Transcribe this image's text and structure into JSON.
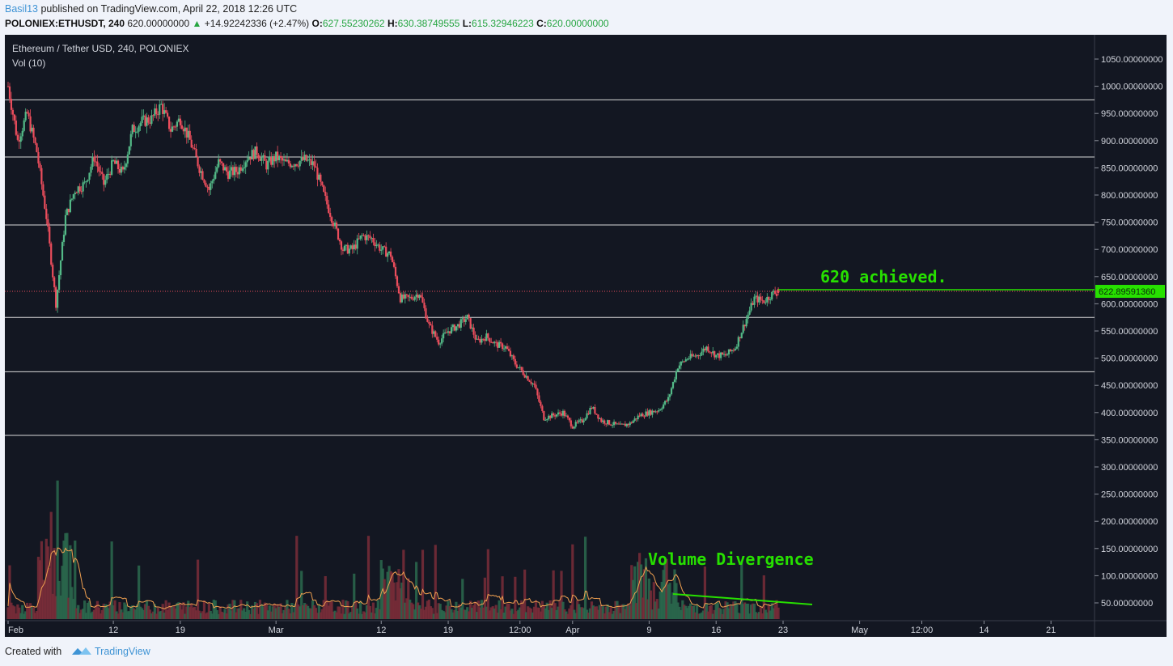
{
  "header": {
    "user": "Basil13",
    "published": " published on TradingView.com, April 22, 2018 12:26 UTC",
    "symbol": "POLONIEX:ETHUSDT, 240",
    "last": "620.00000000",
    "change": "+14.92242336 (+2.47%)",
    "o_label": "O:",
    "o_value": "627.55230262",
    "h_label": "H:",
    "h_value": "630.38749555",
    "l_label": "L:",
    "l_value": "615.32946223",
    "c_label": "C:",
    "c_value": "620.00000000"
  },
  "legend": {
    "title": "Ethereum / Tether USD, 240, POLONIEX",
    "volume": "Vol (10)"
  },
  "annotations": {
    "price": "620 achieved.",
    "volume": "Volume Divergence"
  },
  "footer": {
    "created": "Created with",
    "brand": "TradingView"
  },
  "chart_data": {
    "type": "candlestick",
    "interval": "240",
    "y_ticks": [
      "1050.00000000",
      "1000.00000000",
      "950.00000000",
      "900.00000000",
      "850.00000000",
      "800.00000000",
      "750.00000000",
      "700.00000000",
      "650.00000000",
      "600.00000000",
      "550.00000000",
      "500.00000000",
      "450.00000000",
      "400.00000000",
      "350.00000000",
      "300.00000000",
      "250.00000000",
      "200.00000000",
      "150.00000000",
      "100.00000000",
      "50.00000000"
    ],
    "x_ticks": [
      "Feb",
      "12",
      "19",
      "Mar",
      "12",
      "19",
      "12:00",
      "Apr",
      "9",
      "16",
      "23",
      "May",
      "12:00",
      "14",
      "21"
    ],
    "last_price_label": "622.89591360",
    "horizontal_levels": [
      975,
      870,
      745,
      575,
      475,
      358
    ],
    "price_path": [
      {
        "date": "2018-02-01",
        "close": 1000
      },
      {
        "date": "2018-02-02",
        "close": 900
      },
      {
        "date": "2018-02-03",
        "close": 950
      },
      {
        "date": "2018-02-04",
        "close": 880
      },
      {
        "date": "2018-02-05",
        "close": 760
      },
      {
        "date": "2018-02-06",
        "close": 600
      },
      {
        "date": "2018-02-07",
        "close": 760
      },
      {
        "date": "2018-02-08",
        "close": 810
      },
      {
        "date": "2018-02-09",
        "close": 820
      },
      {
        "date": "2018-02-10",
        "close": 870
      },
      {
        "date": "2018-02-11",
        "close": 820
      },
      {
        "date": "2018-02-12",
        "close": 860
      },
      {
        "date": "2018-02-13",
        "close": 840
      },
      {
        "date": "2018-02-14",
        "close": 920
      },
      {
        "date": "2018-02-15",
        "close": 935
      },
      {
        "date": "2018-02-16",
        "close": 940
      },
      {
        "date": "2018-02-17",
        "close": 965
      },
      {
        "date": "2018-02-18",
        "close": 920
      },
      {
        "date": "2018-02-19",
        "close": 940
      },
      {
        "date": "2018-02-20",
        "close": 900
      },
      {
        "date": "2018-02-21",
        "close": 850
      },
      {
        "date": "2018-02-22",
        "close": 810
      },
      {
        "date": "2018-02-23",
        "close": 860
      },
      {
        "date": "2018-02-24",
        "close": 840
      },
      {
        "date": "2018-02-25",
        "close": 845
      },
      {
        "date": "2018-02-26",
        "close": 870
      },
      {
        "date": "2018-02-27",
        "close": 880
      },
      {
        "date": "2018-02-28",
        "close": 855
      },
      {
        "date": "2018-03-01",
        "close": 870
      },
      {
        "date": "2018-03-02",
        "close": 858
      },
      {
        "date": "2018-03-03",
        "close": 860
      },
      {
        "date": "2018-03-04",
        "close": 865
      },
      {
        "date": "2018-03-05",
        "close": 855
      },
      {
        "date": "2018-03-06",
        "close": 800
      },
      {
        "date": "2018-03-07",
        "close": 750
      },
      {
        "date": "2018-03-08",
        "close": 700
      },
      {
        "date": "2018-03-09",
        "close": 700
      },
      {
        "date": "2018-03-10",
        "close": 725
      },
      {
        "date": "2018-03-11",
        "close": 720
      },
      {
        "date": "2018-03-12",
        "close": 700
      },
      {
        "date": "2018-03-13",
        "close": 690
      },
      {
        "date": "2018-03-14",
        "close": 610
      },
      {
        "date": "2018-03-15",
        "close": 610
      },
      {
        "date": "2018-03-16",
        "close": 620
      },
      {
        "date": "2018-03-17",
        "close": 560
      },
      {
        "date": "2018-03-18",
        "close": 530
      },
      {
        "date": "2018-03-19",
        "close": 550
      },
      {
        "date": "2018-03-20",
        "close": 560
      },
      {
        "date": "2018-03-21",
        "close": 575
      },
      {
        "date": "2018-03-22",
        "close": 530
      },
      {
        "date": "2018-03-23",
        "close": 540
      },
      {
        "date": "2018-03-24",
        "close": 525
      },
      {
        "date": "2018-03-25",
        "close": 520
      },
      {
        "date": "2018-03-26",
        "close": 490
      },
      {
        "date": "2018-03-27",
        "close": 470
      },
      {
        "date": "2018-03-28",
        "close": 450
      },
      {
        "date": "2018-03-29",
        "close": 390
      },
      {
        "date": "2018-03-30",
        "close": 395
      },
      {
        "date": "2018-03-31",
        "close": 400
      },
      {
        "date": "2018-04-01",
        "close": 375
      },
      {
        "date": "2018-04-02",
        "close": 385
      },
      {
        "date": "2018-04-03",
        "close": 410
      },
      {
        "date": "2018-04-04",
        "close": 385
      },
      {
        "date": "2018-04-05",
        "close": 380
      },
      {
        "date": "2018-04-06",
        "close": 375
      },
      {
        "date": "2018-04-07",
        "close": 380
      },
      {
        "date": "2018-04-08",
        "close": 395
      },
      {
        "date": "2018-04-09",
        "close": 400
      },
      {
        "date": "2018-04-10",
        "close": 405
      },
      {
        "date": "2018-04-11",
        "close": 425
      },
      {
        "date": "2018-04-12",
        "close": 485
      },
      {
        "date": "2018-04-13",
        "close": 500
      },
      {
        "date": "2018-04-14",
        "close": 505
      },
      {
        "date": "2018-04-15",
        "close": 520
      },
      {
        "date": "2018-04-16",
        "close": 505
      },
      {
        "date": "2018-04-17",
        "close": 505
      },
      {
        "date": "2018-04-18",
        "close": 520
      },
      {
        "date": "2018-04-19",
        "close": 565
      },
      {
        "date": "2018-04-20",
        "close": 610
      },
      {
        "date": "2018-04-21",
        "close": 605
      },
      {
        "date": "2018-04-22",
        "close": 620
      }
    ],
    "colors": {
      "up": "#53b987",
      "down": "#eb4d5c",
      "background": "#131722",
      "grid_level": "#d9d9d9",
      "annotation": "#27e000"
    }
  }
}
